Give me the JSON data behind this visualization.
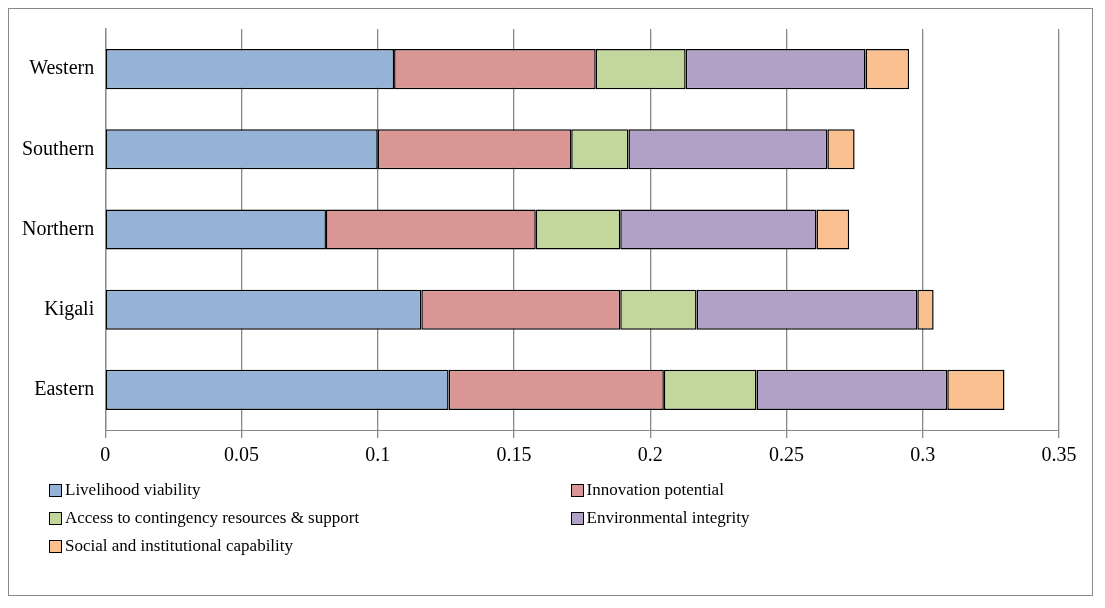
{
  "chart_data": {
    "type": "bar",
    "orientation": "horizontal",
    "stacked": true,
    "categories": [
      "Western",
      "Southern",
      "Northern",
      "Kigali",
      "Eastern"
    ],
    "series": [
      {
        "name": "Livelihood viability",
        "color": "#95b3d7",
        "values": [
          0.106,
          0.1,
          0.081,
          0.116,
          0.126
        ]
      },
      {
        "name": "Innovation potential",
        "color": "#d99694",
        "values": [
          0.074,
          0.071,
          0.077,
          0.073,
          0.079
        ]
      },
      {
        "name": "Access to contingency resources & support",
        "color": "#c3d69b",
        "values": [
          0.033,
          0.021,
          0.031,
          0.028,
          0.034
        ]
      },
      {
        "name": "Environmental integrity",
        "color": "#b2a1c7",
        "values": [
          0.066,
          0.073,
          0.072,
          0.081,
          0.07
        ]
      },
      {
        "name": "Social and institutional capability",
        "color": "#fac090",
        "values": [
          0.016,
          0.01,
          0.012,
          0.006,
          0.021
        ]
      }
    ],
    "xlim": [
      0,
      0.35
    ],
    "xticks": [
      0,
      0.05,
      0.1,
      0.15,
      0.2,
      0.25,
      0.3,
      0.35
    ],
    "grid": "x",
    "legend": "bottom"
  }
}
